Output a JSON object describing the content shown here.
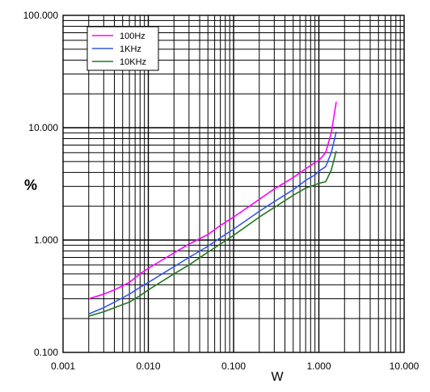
{
  "chart_data": {
    "type": "line",
    "title": "",
    "xlabel": "W",
    "ylabel": "%",
    "x_scale": "log",
    "y_scale": "log",
    "xlim": [
      0.001,
      10
    ],
    "ylim": [
      0.1,
      100
    ],
    "grid": true,
    "legend_position": "top-left",
    "x_tick_labels": [
      "0.001",
      "0.010",
      "0.100",
      "1.000",
      "10.000"
    ],
    "y_tick_labels": [
      "0.100",
      "1.000",
      "10.000",
      "100.000"
    ],
    "series": [
      {
        "name": "100Hz",
        "color": "#ff00ff",
        "x": [
          0.002,
          0.003,
          0.004,
          0.006,
          0.008,
          0.01,
          0.02,
          0.03,
          0.05,
          0.07,
          0.1,
          0.2,
          0.3,
          0.5,
          0.7,
          0.9,
          1.0,
          1.2,
          1.4,
          1.6
        ],
        "y": [
          0.3,
          0.33,
          0.36,
          0.42,
          0.5,
          0.56,
          0.77,
          0.92,
          1.12,
          1.35,
          1.6,
          2.3,
          2.85,
          3.6,
          4.3,
          4.9,
          5.1,
          6.0,
          9.0,
          17.0
        ]
      },
      {
        "name": "1KHz",
        "color": "#3355ee",
        "x": [
          0.002,
          0.003,
          0.004,
          0.006,
          0.008,
          0.01,
          0.02,
          0.03,
          0.05,
          0.07,
          0.1,
          0.2,
          0.3,
          0.5,
          0.7,
          0.9,
          1.0,
          1.2,
          1.4,
          1.6
        ],
        "y": [
          0.22,
          0.25,
          0.28,
          0.33,
          0.38,
          0.42,
          0.58,
          0.7,
          0.88,
          1.05,
          1.25,
          1.8,
          2.2,
          2.8,
          3.4,
          3.8,
          4.1,
          4.5,
          6.0,
          9.2
        ]
      },
      {
        "name": "10KHz",
        "color": "#227722",
        "x": [
          0.002,
          0.003,
          0.004,
          0.006,
          0.008,
          0.01,
          0.02,
          0.03,
          0.05,
          0.07,
          0.1,
          0.2,
          0.3,
          0.5,
          0.7,
          0.9,
          1.0,
          1.2,
          1.4,
          1.6
        ],
        "y": [
          0.21,
          0.23,
          0.25,
          0.28,
          0.32,
          0.36,
          0.5,
          0.6,
          0.78,
          0.92,
          1.1,
          1.6,
          1.95,
          2.5,
          2.9,
          3.1,
          3.2,
          3.3,
          4.2,
          6.2
        ]
      }
    ]
  }
}
